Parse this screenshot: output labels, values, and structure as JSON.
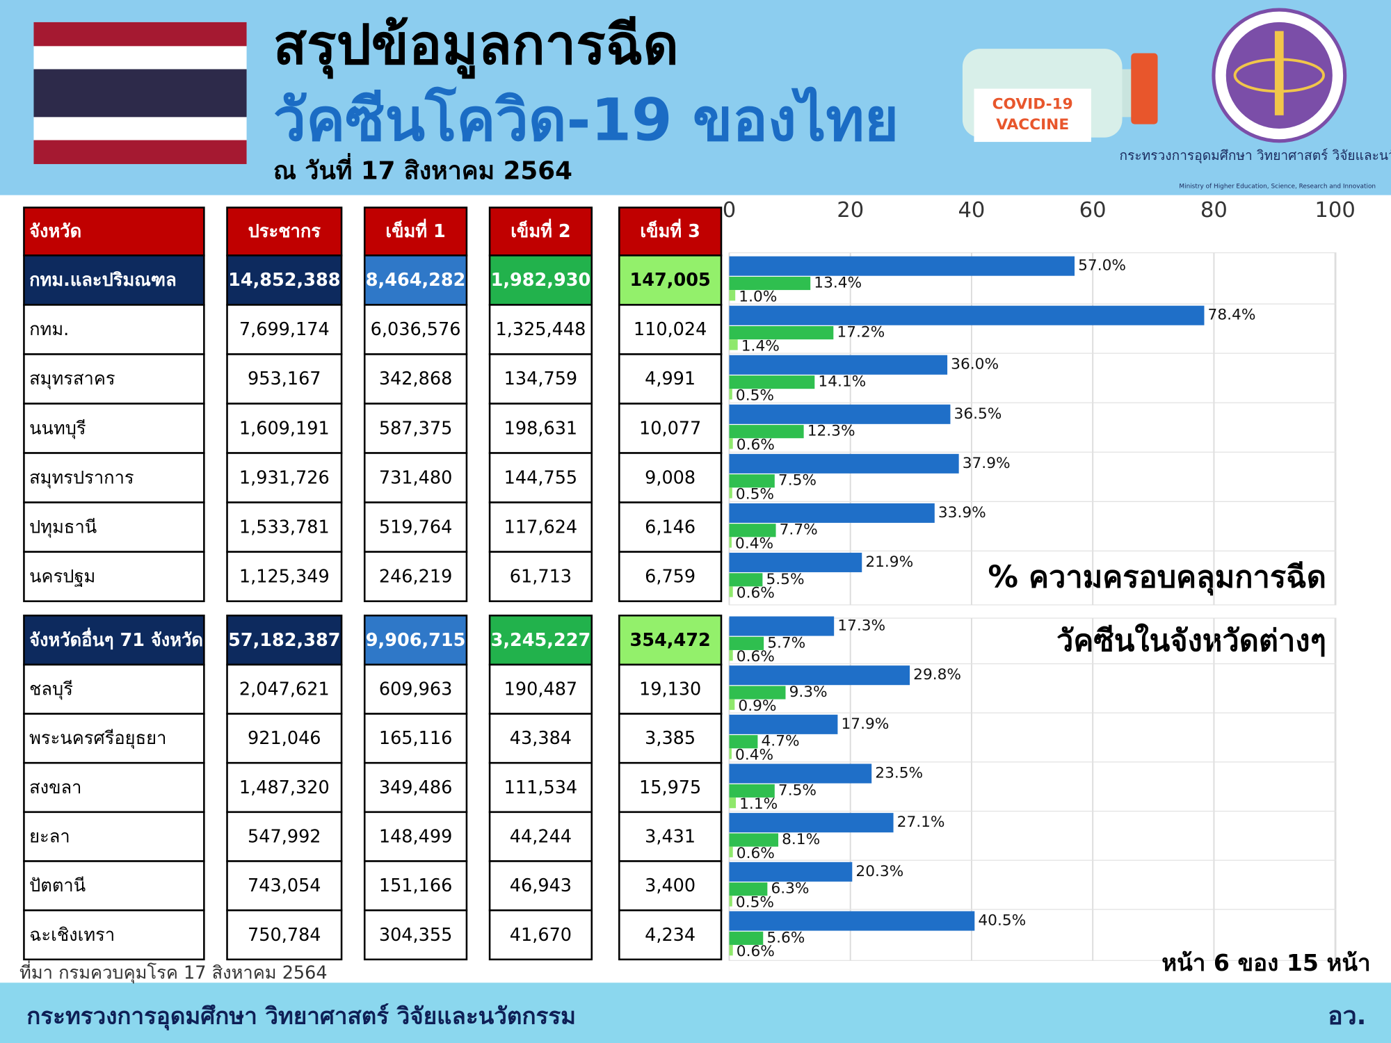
{
  "header": {
    "title_line1": "สรุปข้อมูลการฉีด",
    "title_line2": "วัคซีนโควิด-19 ของไทย",
    "date": "ณ วันที่ 17 สิงหาคม 2564",
    "vaccine_label": [
      "COVID-19",
      "VACCINE"
    ],
    "ministry_name": "กระทรวงการอุดมศึกษา วิทยาศาสตร์ วิจัยและนวัตกรรม",
    "ministry_name_en": "Ministry of Higher Education, Science, Research and Innovation"
  },
  "table": {
    "columns": [
      "จังหวัด",
      "ประชากร",
      "เข็มที่ 1",
      "เข็มที่ 2",
      "เข็มที่ 3"
    ],
    "groups": [
      {
        "summary": [
          "กทม.และปริมณฑล",
          "14,852,388",
          "8,464,282",
          "1,982,930",
          "147,005"
        ],
        "rows": [
          [
            "กทม.",
            "7,699,174",
            "6,036,576",
            "1,325,448",
            "110,024"
          ],
          [
            "สมุทรสาคร",
            "953,167",
            "342,868",
            "134,759",
            "4,991"
          ],
          [
            "นนทบุรี",
            "1,609,191",
            "587,375",
            "198,631",
            "10,077"
          ],
          [
            "สมุทรปราการ",
            "1,931,726",
            "731,480",
            "144,755",
            "9,008"
          ],
          [
            "ปทุมธานี",
            "1,533,781",
            "519,764",
            "117,624",
            "6,146"
          ],
          [
            "นครปฐม",
            "1,125,349",
            "246,219",
            "61,713",
            "6,759"
          ]
        ]
      },
      {
        "summary": [
          "จังหวัดอื่นๆ 71 จังหวัด",
          "57,182,387",
          "9,906,715",
          "3,245,227",
          "354,472"
        ],
        "rows": [
          [
            "ชลบุรี",
            "2,047,621",
            "609,963",
            "190,487",
            "19,130"
          ],
          [
            "พระนครศรีอยุธยา",
            "921,046",
            "165,116",
            "43,384",
            "3,385"
          ],
          [
            "สงขลา",
            "1,487,320",
            "349,486",
            "111,534",
            "15,975"
          ],
          [
            "ยะลา",
            "547,992",
            "148,499",
            "44,244",
            "3,431"
          ],
          [
            "ปัตตานี",
            "743,054",
            "151,166",
            "46,943",
            "3,400"
          ],
          [
            "ฉะเชิงเทรา",
            "750,784",
            "304,355",
            "41,670",
            "4,234"
          ]
        ]
      }
    ]
  },
  "chart_data": {
    "type": "hbar",
    "annotations": [
      "% ความครอบคลุมการฉีด",
      "วัคซีนในจังหวัดต่างๆ"
    ],
    "categories": [
      null,
      null,
      null,
      null,
      null,
      null,
      null,
      null,
      null,
      null,
      null,
      null,
      null,
      null
    ],
    "xlim": [
      0,
      100
    ],
    "xticks": [
      0,
      20,
      40,
      60,
      80,
      100
    ],
    "grid": true,
    "series": [
      {
        "color": "#1f6fc8",
        "values": [
          57.0,
          78.4,
          36.0,
          36.5,
          37.9,
          33.9,
          21.9,
          17.3,
          29.8,
          17.9,
          23.5,
          27.1,
          20.3,
          40.5
        ],
        "value_labels": [
          "57.0%",
          "78.4%",
          "36.0%",
          "36.5%",
          "37.9%",
          "33.9%",
          "21.9%",
          "17.3%",
          "29.8%",
          "17.9%",
          "23.5%",
          "27.1%",
          "20.3%",
          "40.5%"
        ]
      },
      {
        "color": "#2fbf4f",
        "values": [
          13.4,
          17.2,
          14.1,
          12.3,
          7.5,
          7.7,
          5.5,
          5.7,
          9.3,
          4.7,
          7.5,
          8.1,
          6.3,
          5.6
        ],
        "value_labels": [
          "13.4%",
          "17.2%",
          "14.1%",
          "12.3%",
          "7.5%",
          "7.7%",
          "5.5%",
          "5.7%",
          "9.3%",
          "4.7%",
          "7.5%",
          "8.1%",
          "6.3%",
          "5.6%"
        ]
      },
      {
        "color": "#8fe86c",
        "values": [
          1.0,
          1.4,
          0.5,
          0.6,
          0.5,
          0.4,
          0.6,
          0.6,
          0.9,
          0.4,
          1.1,
          0.6,
          0.5,
          0.6
        ],
        "value_labels": [
          "1.0%",
          "1.4%",
          "0.5%",
          "0.6%",
          "0.5%",
          "0.4%",
          "0.6%",
          "0.6%",
          "0.9%",
          "0.4%",
          "1.1%",
          "0.6%",
          "0.5%",
          "0.6%"
        ]
      }
    ]
  },
  "footer": {
    "source": "ที่มา กรมควบคุมโรค 17 สิงหาคม 2564",
    "page": "หน้า 6 ของ 15 หน้า",
    "ministry": "กระทรวงการอุดมศึกษา วิทยาศาสตร์ วิจัยและนวัตกรรม",
    "abbr": "อว."
  }
}
